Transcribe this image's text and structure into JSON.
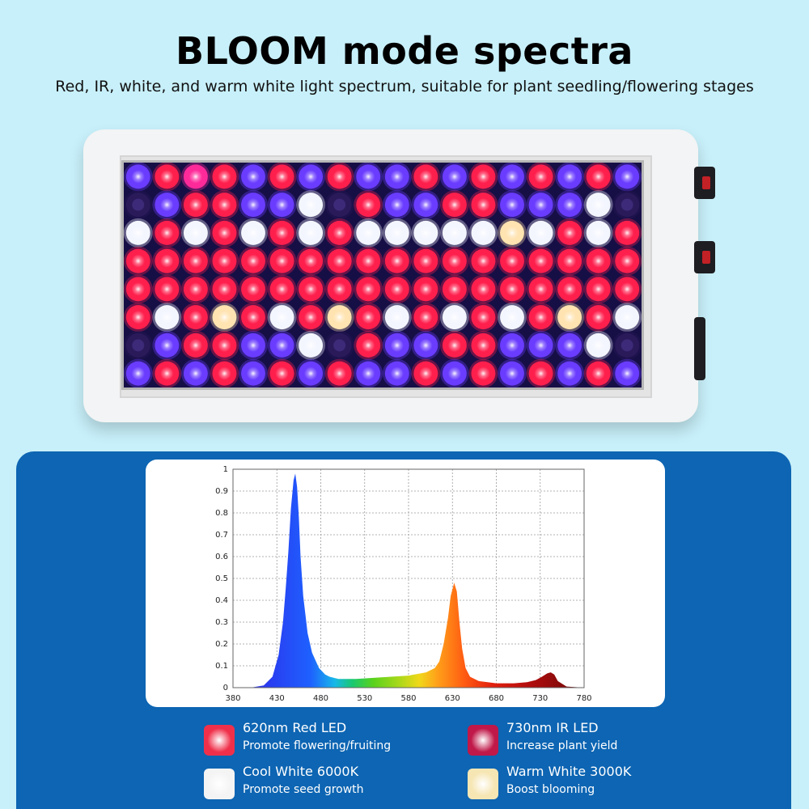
{
  "header": {
    "title": "BLOOM mode spectra",
    "subtitle": "Red, IR, white, and warm white light spectrum, suitable for plant seedling/flowering stages"
  },
  "panel": {
    "rows": 8,
    "cols": 18,
    "pattern": [
      "BRPRBRBRBBRBRBRBRB",
      "DBRRBBWDRBBRRBBBWD",
      "WRWRWRWRWWWWWYWRWR",
      "RRRRRRRRRRRRRRRRRR",
      "RRRRRRRRRRRRRRRRRR",
      "RWRYRWRYRWRWRWRYRW",
      "DBRRBBWDRBBRRBBBWD",
      "BRBRBRBRBBRBRBRBRB"
    ],
    "colors": {
      "R": "#ff1f4d",
      "B": "#6a3cff",
      "P": "#ff2a9a",
      "W": "#f4f6ff",
      "Y": "#ffe3b0",
      "D": "#2a1a5a"
    }
  },
  "chart_data": {
    "type": "area",
    "title": "",
    "xlabel": "",
    "ylabel": "",
    "xlim": [
      380,
      780
    ],
    "ylim": [
      0,
      1
    ],
    "x_ticks": [
      380,
      430,
      480,
      530,
      580,
      630,
      680,
      730,
      780
    ],
    "y_ticks": [
      "0",
      "0.1",
      "0.2",
      "0.3",
      "0.4",
      "0.5",
      "0.6",
      "0.7",
      "0.8",
      "0.9",
      "1"
    ],
    "grid": true,
    "x": [
      380,
      400,
      415,
      425,
      432,
      437,
      440,
      443,
      446,
      449,
      451,
      453,
      455,
      457,
      460,
      465,
      470,
      478,
      485,
      490,
      500,
      520,
      540,
      560,
      580,
      600,
      610,
      615,
      620,
      625,
      628,
      632,
      635,
      638,
      641,
      645,
      650,
      660,
      680,
      700,
      715,
      725,
      732,
      738,
      742,
      746,
      750,
      760,
      780
    ],
    "y": [
      0,
      0,
      0.01,
      0.05,
      0.15,
      0.3,
      0.45,
      0.62,
      0.82,
      0.95,
      0.98,
      0.92,
      0.78,
      0.6,
      0.42,
      0.25,
      0.16,
      0.09,
      0.06,
      0.05,
      0.04,
      0.04,
      0.045,
      0.05,
      0.055,
      0.07,
      0.09,
      0.12,
      0.2,
      0.32,
      0.42,
      0.48,
      0.44,
      0.3,
      0.18,
      0.09,
      0.05,
      0.03,
      0.02,
      0.02,
      0.025,
      0.035,
      0.05,
      0.065,
      0.07,
      0.06,
      0.03,
      0.005,
      0
    ]
  },
  "legend": [
    {
      "name": "620nm Red LED",
      "desc": "Promote flowering/fruiting",
      "color": "#f0304a"
    },
    {
      "name": "730nm IR LED",
      "desc": "Increase plant yield",
      "color": "#c01848"
    },
    {
      "name": "Cool White 6000K",
      "desc": "Promote seed growth",
      "color": "#f4f4f4"
    },
    {
      "name": "Warm White 3000K",
      "desc": "Boost blooming",
      "color": "#f6e6b4"
    }
  ]
}
